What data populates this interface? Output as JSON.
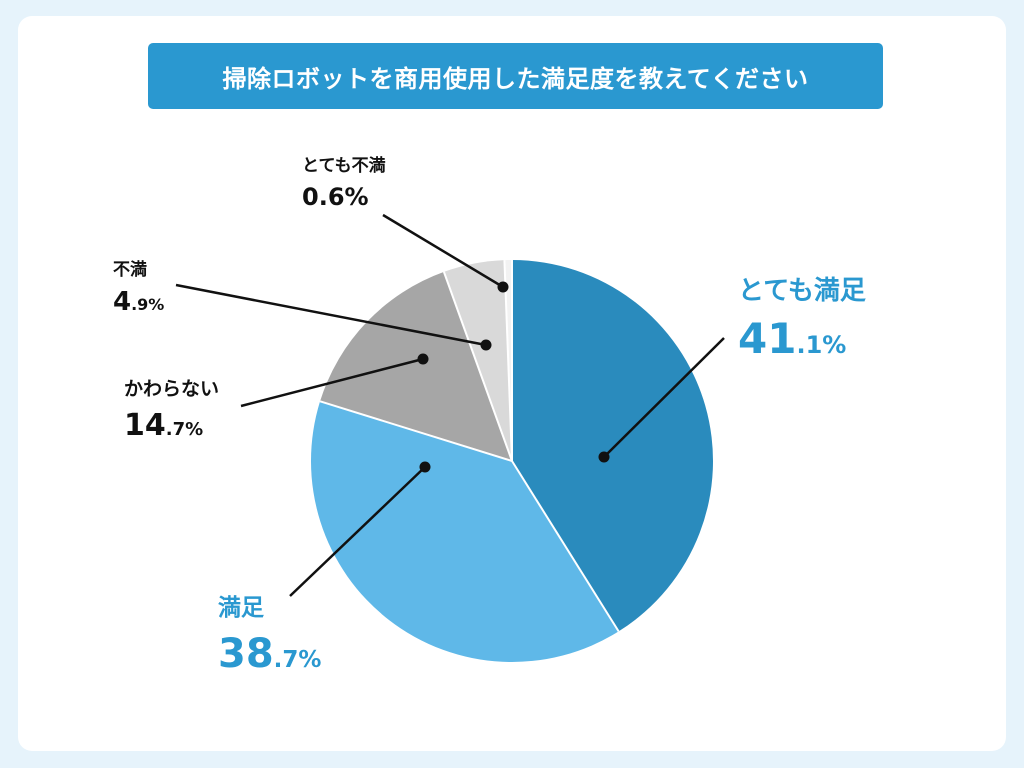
{
  "title": "掃除ロボットを商用使用した満足度を教えてください",
  "chart_data": {
    "type": "pie",
    "title": "掃除ロボットを商用使用した満足度を教えてください",
    "slices": [
      {
        "label": "とても満足",
        "value": 41.1,
        "int": "41",
        "dec": ".1%",
        "color": "#2a8bbd"
      },
      {
        "label": "満足",
        "value": 38.7,
        "int": "38",
        "dec": ".7%",
        "color": "#5fb8e8"
      },
      {
        "label": "かわらない",
        "value": 14.7,
        "int": "14",
        "dec": ".7%",
        "color": "#a6a6a6"
      },
      {
        "label": "不満",
        "value": 4.9,
        "int": "4",
        "dec": ".9%",
        "color": "#d9d9d9"
      },
      {
        "label": "とても不満",
        "value": 0.6,
        "int": "0.6%",
        "dec": "",
        "color": "#f2f2f2"
      }
    ],
    "legend": "none"
  }
}
